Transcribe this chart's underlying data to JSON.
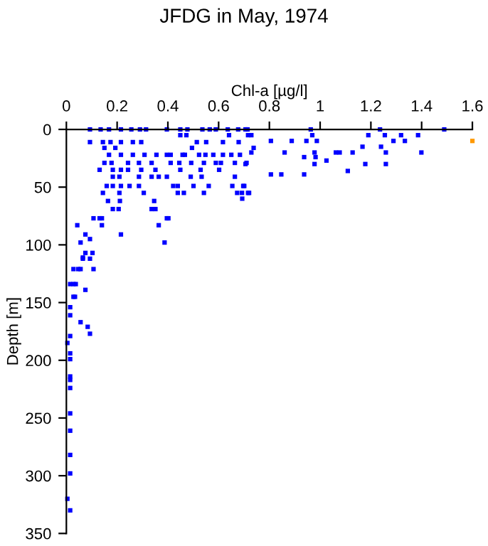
{
  "chart_data": {
    "type": "scatter",
    "title": "JFDG in May, 1974",
    "xlabel": "Chl-a [µg/l]",
    "ylabel": "Depth [m]",
    "xlim": [
      0,
      1.6
    ],
    "xticks": [
      0,
      0.2,
      0.4,
      0.6,
      0.8,
      1,
      1.2,
      1.4,
      1.6
    ],
    "ylim": [
      350,
      0
    ],
    "yticks": [
      0,
      50,
      100,
      150,
      200,
      250,
      300,
      350
    ],
    "grid": false,
    "legend": false,
    "marker": "square",
    "series": [
      {
        "color": "#0000ff",
        "x": [
          0.093,
          0.135,
          0.168,
          0.215,
          0.256,
          0.29,
          0.314,
          0.396,
          0.449,
          0.477,
          0.536,
          0.565,
          0.589,
          0.636,
          0.677,
          0.714,
          0.449,
          0.473,
          0.641,
          0.716,
          0.093,
          0.144,
          0.174,
          0.215,
          0.262,
          0.295,
          0.514,
          0.551,
          0.617,
          0.679,
          0.15,
          0.193,
          0.495,
          0.738,
          0.168,
          0.215,
          0.262,
          0.308,
          0.355,
          0.396,
          0.411,
          0.458,
          0.467,
          0.523,
          0.548,
          0.579,
          0.617,
          0.65,
          0.684,
          0.15,
          0.178,
          0.243,
          0.286,
          0.336,
          0.411,
          0.445,
          0.492,
          0.542,
          0.589,
          0.609,
          0.664,
          0.71,
          0.131,
          0.183,
          0.215,
          0.243,
          0.295,
          0.351,
          0.449,
          0.529,
          0.602,
          0.183,
          0.209,
          0.286,
          0.336,
          0.364,
          0.396,
          0.49,
          0.533,
          0.664,
          0.159,
          0.183,
          0.215,
          0.249,
          0.286,
          0.421,
          0.439,
          0.501,
          0.561,
          0.654,
          0.701,
          0.144,
          0.209,
          0.305,
          0.439,
          0.463,
          0.542,
          0.673,
          0.692,
          0.72,
          0.164,
          0.211,
          0.346,
          0.183,
          0.206,
          0.336,
          0.351,
          0.107,
          0.14,
          0.131,
          0.396,
          0.402,
          0.043,
          0.14,
          0.364,
          0.075,
          0.215,
          0.093,
          0.056,
          0.387,
          0.075,
          0.103,
          0.065,
          0.706,
          0.963,
          1.236,
          1.489,
          0.729,
          0.969,
          1.19,
          1.255,
          1.319,
          1.386,
          0.806,
          0.888,
          0.946,
          0.987,
          1.289,
          1.334,
          1.167,
          1.24,
          0.729,
          0.86,
          0.978,
          1.062,
          1.077,
          1.128,
          1.259,
          1.399,
          0.937,
          0.982,
          1.025,
          0.706,
          0.978,
          1.178,
          1.259,
          1.109,
          0.806,
          0.847,
          0.937,
          0.697,
          0.716,
          0.693,
          0.065,
          0.093,
          0.028,
          0.047,
          0.056,
          0.107,
          0.015,
          0.028,
          0.037,
          0.075,
          0.034,
          0.028,
          0.015,
          0.015,
          0.056,
          0.084,
          0.093,
          0.015,
          0.004,
          0.015,
          0.015,
          0.015,
          0.015,
          0.015,
          0.015,
          0.015,
          0.015,
          0.015,
          0.004,
          0.015
        ],
        "values": [
          0,
          0,
          0,
          0,
          0,
          0,
          0,
          0,
          0,
          0,
          0,
          0,
          0,
          0,
          0,
          0,
          5,
          5,
          5,
          5,
          11,
          11,
          11,
          11,
          11,
          11,
          11,
          11,
          11,
          11,
          16,
          16,
          16,
          16,
          22,
          22,
          22,
          22,
          22,
          22,
          22,
          22,
          22,
          22,
          22,
          22,
          22,
          22,
          22,
          29,
          29,
          29,
          29,
          29,
          29,
          29,
          29,
          29,
          29,
          29,
          29,
          29,
          35,
          35,
          35,
          35,
          35,
          35,
          35,
          35,
          35,
          41,
          41,
          41,
          41,
          41,
          41,
          41,
          41,
          41,
          49,
          49,
          49,
          49,
          49,
          49,
          49,
          49,
          49,
          49,
          49,
          55,
          55,
          55,
          55,
          55,
          55,
          55,
          55,
          55,
          62,
          62,
          62,
          69,
          69,
          69,
          69,
          77,
          77,
          77,
          77,
          77,
          83,
          83,
          83,
          91,
          91,
          95,
          98,
          98,
          107,
          107,
          111,
          0,
          0,
          0,
          0,
          5,
          5,
          5,
          5,
          5,
          5,
          10,
          10,
          10,
          10,
          10,
          10,
          15,
          15,
          20,
          20,
          20,
          20,
          20,
          20,
          20,
          20,
          24,
          24,
          27,
          30,
          30,
          30,
          30,
          36,
          39,
          39,
          39,
          49,
          55,
          60,
          112,
          112,
          121,
          121,
          121,
          121,
          134,
          134,
          134,
          139,
          145,
          145,
          154,
          161,
          167,
          171,
          177,
          179,
          185,
          194,
          199,
          214,
          217,
          224,
          246,
          261,
          282,
          298,
          320,
          330
        ]
      },
      {
        "color": "#ff9900",
        "x": [
          1.6
        ],
        "values": [
          10
        ]
      }
    ]
  }
}
